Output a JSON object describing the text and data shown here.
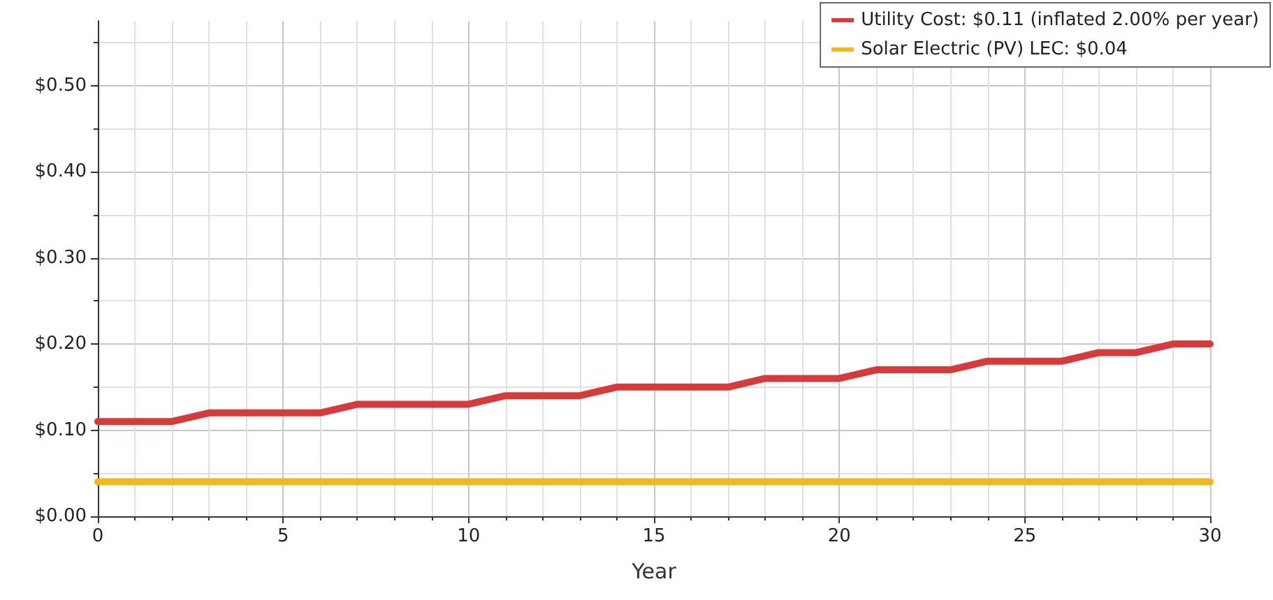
{
  "chart_data": {
    "type": "line",
    "xlabel": "Year",
    "x": [
      0,
      1,
      2,
      3,
      4,
      5,
      6,
      7,
      8,
      9,
      10,
      11,
      12,
      13,
      14,
      15,
      16,
      17,
      18,
      19,
      20,
      21,
      22,
      23,
      24,
      25,
      26,
      27,
      28,
      29,
      30
    ],
    "series": [
      {
        "name": "Utility Cost: $0.11 (inflated 2.00% per year)",
        "color": "#d8393a",
        "values": [
          0.11,
          0.11,
          0.11,
          0.12,
          0.12,
          0.12,
          0.12,
          0.13,
          0.13,
          0.13,
          0.13,
          0.14,
          0.14,
          0.14,
          0.15,
          0.15,
          0.15,
          0.15,
          0.16,
          0.16,
          0.16,
          0.17,
          0.17,
          0.17,
          0.18,
          0.18,
          0.18,
          0.19,
          0.19,
          0.2,
          0.2
        ]
      },
      {
        "name": "Solar Electric (PV) LEC: $0.04",
        "color": "#f4b81c",
        "values": [
          0.04,
          0.04,
          0.04,
          0.04,
          0.04,
          0.04,
          0.04,
          0.04,
          0.04,
          0.04,
          0.04,
          0.04,
          0.04,
          0.04,
          0.04,
          0.04,
          0.04,
          0.04,
          0.04,
          0.04,
          0.04,
          0.04,
          0.04,
          0.04,
          0.04,
          0.04,
          0.04,
          0.04,
          0.04,
          0.04,
          0.04
        ]
      }
    ],
    "xlim": [
      0,
      30
    ],
    "xticks": [
      0,
      5,
      10,
      15,
      20,
      25,
      30
    ],
    "ylim": [
      0,
      0.575
    ],
    "yticks": [
      {
        "value": 0,
        "label": "$0.00"
      },
      {
        "value": 0.1,
        "label": "$0.10"
      },
      {
        "value": 0.2,
        "label": "$0.20"
      },
      {
        "value": 0.3,
        "label": "$0.30"
      },
      {
        "value": 0.4,
        "label": "$0.40"
      },
      {
        "value": 0.5,
        "label": "$0.50"
      }
    ],
    "grid": true,
    "legend": "top right",
    "marker": "none",
    "line_style": "solid"
  }
}
